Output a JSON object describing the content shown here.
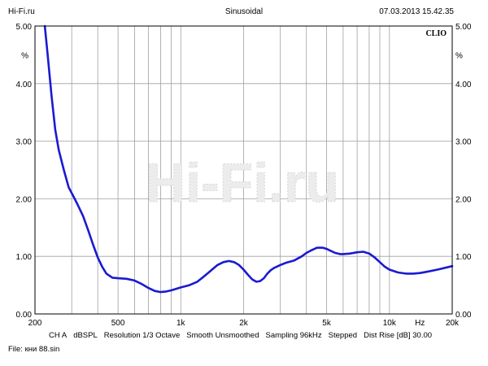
{
  "header": {
    "left": "Hi-Fi.ru",
    "center": "Sinusoidal",
    "right": "07.03.2013 15.42.35"
  },
  "brand": "CLIO",
  "watermark": "Hi-Fi.ru",
  "footer": {
    "channel": "CH A",
    "units": "dBSPL",
    "resolution": "Resolution 1/3 Octave",
    "smooth": "Smooth Unsmoothed",
    "sampling": "Sampling 96kHz",
    "stepped": "Stepped",
    "dist_rise": "Dist Rise [dB] 30.00"
  },
  "file_label": "File: кни 88.sin",
  "colors": {
    "curve": "#1a1ad2",
    "grid": "#a0a0a0",
    "frame": "#000000"
  },
  "chart_data": {
    "type": "line",
    "x_scale": "log",
    "xlim": [
      200,
      20000
    ],
    "ylim": [
      0,
      5
    ],
    "y_unit_label": "%",
    "x_unit_label": "Hz",
    "y_ticks": [
      "0.00",
      "1.00",
      "2.00",
      "3.00",
      "4.00",
      "5.00"
    ],
    "x_ticks": [
      {
        "value": 200,
        "label": "200"
      },
      {
        "value": 500,
        "label": "500"
      },
      {
        "value": 1000,
        "label": "1k"
      },
      {
        "value": 2000,
        "label": "2k"
      },
      {
        "value": 5000,
        "label": "5k"
      },
      {
        "value": 10000,
        "label": "10k"
      },
      {
        "value": 20000,
        "label": "20k"
      }
    ],
    "grid": true,
    "series": [
      {
        "x": [
          223,
          230,
          240,
          250,
          260,
          275,
          290,
          305,
          320,
          340,
          360,
          380,
          400,
          420,
          440,
          470,
          500,
          550,
          600,
          650,
          700,
          750,
          800,
          850,
          900,
          1000,
          1100,
          1200,
          1300,
          1400,
          1500,
          1600,
          1700,
          1800,
          1900,
          2000,
          2100,
          2200,
          2300,
          2400,
          2500,
          2600,
          2700,
          2800,
          3000,
          3200,
          3500,
          3800,
          4000,
          4200,
          4500,
          4800,
          5000,
          5200,
          5500,
          5800,
          6000,
          6500,
          7000,
          7500,
          8000,
          8500,
          9000,
          9500,
          10000,
          11000,
          12000,
          13000,
          14000,
          15000,
          17000,
          20000
        ],
        "y": [
          5.0,
          4.5,
          3.8,
          3.2,
          2.85,
          2.5,
          2.2,
          2.05,
          1.9,
          1.7,
          1.45,
          1.2,
          0.98,
          0.82,
          0.7,
          0.63,
          0.62,
          0.61,
          0.58,
          0.52,
          0.45,
          0.4,
          0.38,
          0.39,
          0.41,
          0.46,
          0.5,
          0.56,
          0.66,
          0.76,
          0.85,
          0.9,
          0.92,
          0.9,
          0.85,
          0.77,
          0.68,
          0.6,
          0.56,
          0.57,
          0.62,
          0.7,
          0.76,
          0.8,
          0.85,
          0.89,
          0.93,
          1.0,
          1.06,
          1.1,
          1.15,
          1.15,
          1.13,
          1.1,
          1.06,
          1.04,
          1.04,
          1.05,
          1.07,
          1.08,
          1.05,
          0.98,
          0.9,
          0.82,
          0.77,
          0.72,
          0.7,
          0.7,
          0.71,
          0.73,
          0.77,
          0.83
        ]
      }
    ]
  }
}
